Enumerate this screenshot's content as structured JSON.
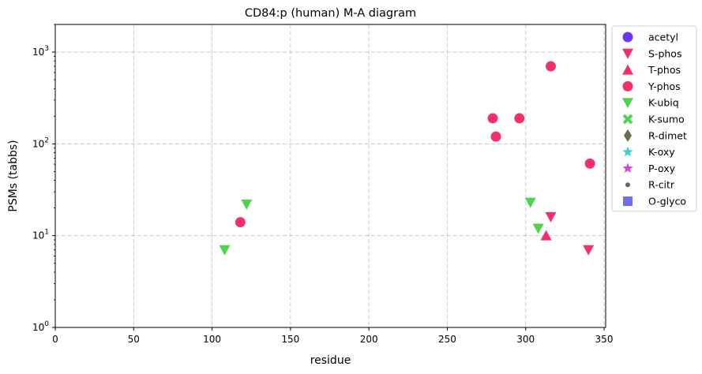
{
  "chart_data": {
    "type": "scatter",
    "title": "CD84:p (human) M-A diagram",
    "xlabel": "residue",
    "ylabel": "PSMs (tabbs)",
    "xlim": [
      0,
      351
    ],
    "ylim": [
      1,
      2000
    ],
    "yscale": "log",
    "grid": true,
    "legend_position": "outside-right",
    "x_ticks": [
      0,
      50,
      100,
      150,
      200,
      250,
      300,
      350
    ],
    "y_ticks": [
      1,
      10,
      100,
      1000
    ],
    "series": [
      {
        "name": "acetyl",
        "marker": "circle",
        "color": "#6a36f2",
        "points": []
      },
      {
        "name": "S-phos",
        "marker": "triangle-down",
        "color": "#f2306a",
        "points": [
          [
            316,
            16
          ],
          [
            340,
            7
          ]
        ]
      },
      {
        "name": "T-phos",
        "marker": "triangle-up",
        "color": "#f2306a",
        "points": [
          [
            313,
            10
          ]
        ]
      },
      {
        "name": "Y-phos",
        "marker": "circle",
        "color": "#f2306a",
        "points": [
          [
            118,
            14
          ],
          [
            279,
            190
          ],
          [
            281,
            120
          ],
          [
            296,
            190
          ],
          [
            316,
            700
          ],
          [
            341,
            61
          ]
        ]
      },
      {
        "name": "K-ubiq",
        "marker": "triangle-down",
        "color": "#4fd34f",
        "points": [
          [
            108,
            7
          ],
          [
            122,
            22
          ],
          [
            303,
            23
          ],
          [
            308,
            12
          ]
        ]
      },
      {
        "name": "K-sumo",
        "marker": "x",
        "color": "#4fd34f",
        "points": []
      },
      {
        "name": "R-dimet",
        "marker": "diamond",
        "color": "#6b6b45",
        "points": []
      },
      {
        "name": "K-oxy",
        "marker": "star",
        "color": "#3fcfcf",
        "points": []
      },
      {
        "name": "P-oxy",
        "marker": "star",
        "color": "#c94fd3",
        "points": []
      },
      {
        "name": "R-citr",
        "marker": "small-circle",
        "color": "#666666",
        "points": []
      },
      {
        "name": "O-glyco",
        "marker": "square",
        "color": "#7070e6",
        "points": []
      }
    ]
  }
}
